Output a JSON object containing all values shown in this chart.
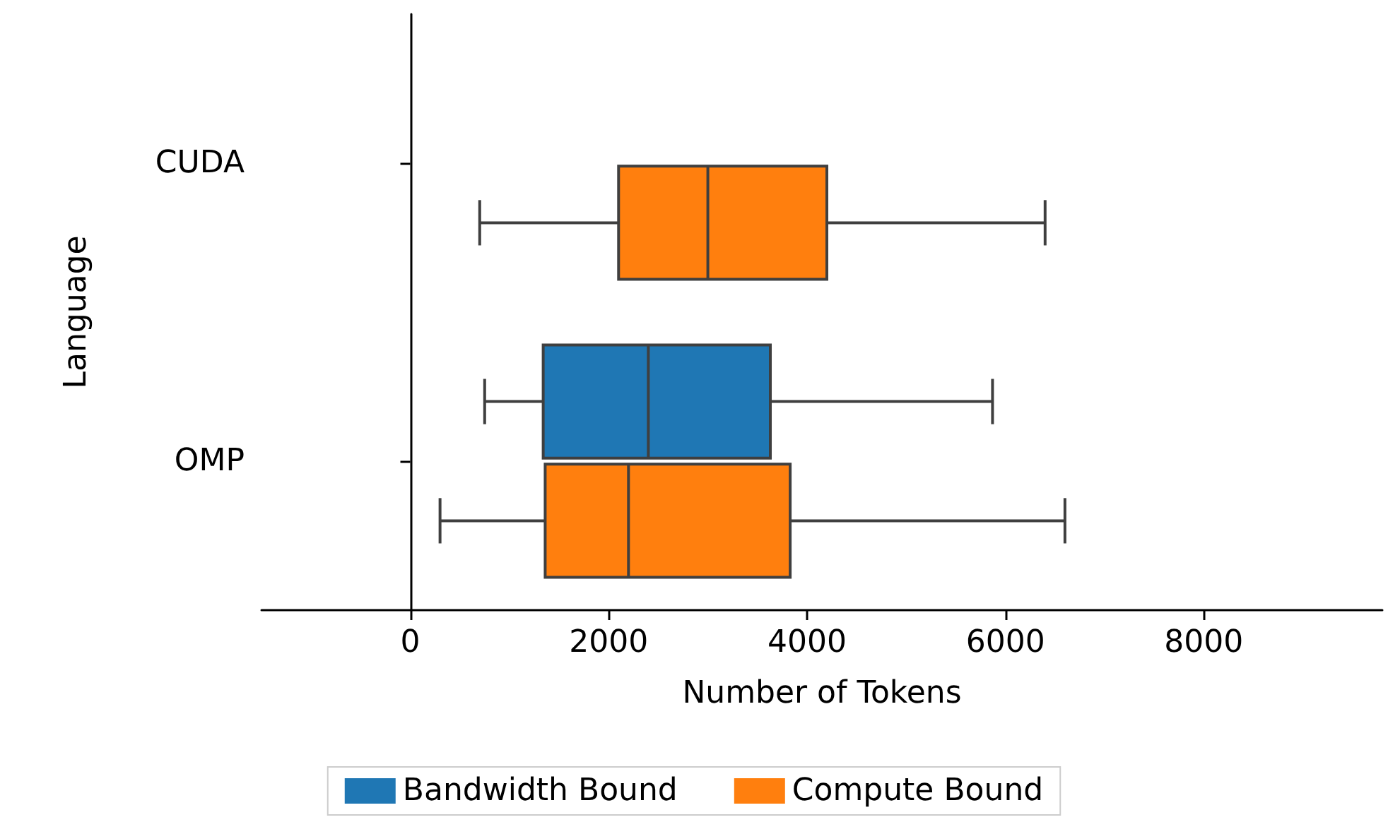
{
  "chart_data": {
    "type": "box",
    "orientation": "horizontal",
    "xlabel": "Number of Tokens",
    "ylabel": "Language",
    "categories": [
      "CUDA",
      "OMP"
    ],
    "series": [
      {
        "name": "Bandwidth Bound",
        "color": "#1f77b4",
        "boxes": [
          null,
          {
            "low": 750,
            "q1": 1340,
            "median": 2400,
            "q3": 3630,
            "high": 5870
          }
        ]
      },
      {
        "name": "Compute Bound",
        "color": "#ff7f0e",
        "boxes": [
          {
            "low": 700,
            "q1": 2100,
            "median": 3000,
            "q3": 4200,
            "high": 6400
          },
          {
            "low": 300,
            "q1": 1360,
            "median": 2200,
            "q3": 3830,
            "high": 6600
          }
        ]
      }
    ],
    "xlim": [
      -1500,
      9800
    ],
    "xticks": [
      0,
      2000,
      4000,
      6000,
      8000
    ],
    "legend": "bottom"
  }
}
